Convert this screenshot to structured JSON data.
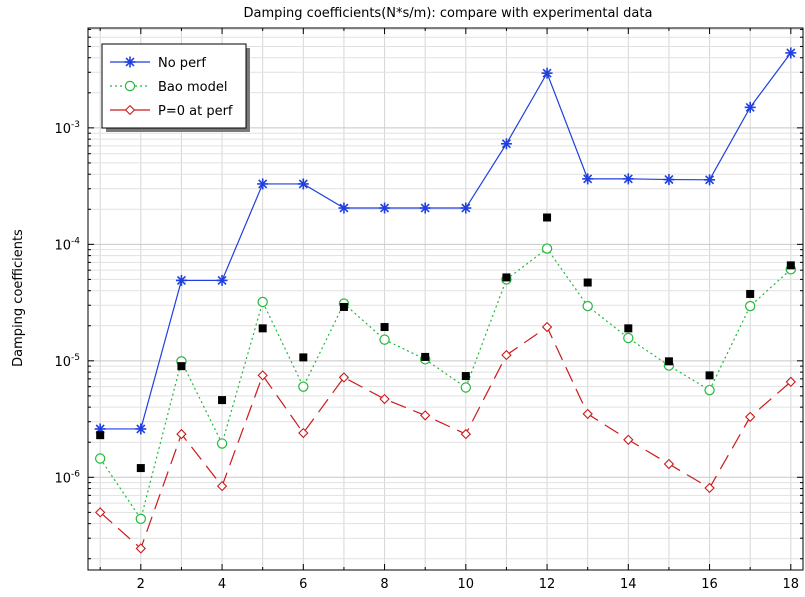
{
  "chart_data": {
    "type": "line",
    "title": "Damping coefficients(N*s/m): compare with experimental data",
    "xlabel": "",
    "ylabel": "Damping coefficients",
    "xlim": [
      0.7,
      18.3
    ],
    "ylim": [
      1.6e-07,
      0.0072
    ],
    "yscale": "log",
    "grid": true,
    "legend_position": "top-left",
    "x_ticks": [
      2,
      4,
      6,
      8,
      10,
      12,
      14,
      16,
      18
    ],
    "y_ticks": [
      {
        "value": 1e-06,
        "base": "10",
        "exp": "-6"
      },
      {
        "value": 1e-05,
        "base": "10",
        "exp": "-5"
      },
      {
        "value": 0.0001,
        "base": "10",
        "exp": "-4"
      },
      {
        "value": 0.001,
        "base": "10",
        "exp": "-3"
      }
    ],
    "x": [
      1,
      2,
      3,
      4,
      5,
      6,
      7,
      8,
      9,
      10,
      11,
      12,
      13,
      14,
      15,
      16,
      17,
      18
    ],
    "series": [
      {
        "name": "No perf",
        "color": "#1f3fe0",
        "marker": "star",
        "dash": "solid",
        "values": [
          2.6e-06,
          2.6e-06,
          4.9e-05,
          4.9e-05,
          0.00033,
          0.00033,
          0.000205,
          0.000205,
          0.000205,
          0.000205,
          0.00073,
          0.00295,
          0.000365,
          0.000365,
          0.00036,
          0.000358,
          0.0015,
          0.0044
        ]
      },
      {
        "name": "Bao model",
        "color": "#22b83a",
        "marker": "circle",
        "dash": "dotted",
        "values": [
          1.45e-06,
          4.4e-07,
          9.9e-06,
          1.95e-06,
          3.2e-05,
          6e-06,
          3.1e-05,
          1.52e-05,
          1.03e-05,
          5.9e-06,
          5e-05,
          9.2e-05,
          2.95e-05,
          1.57e-05,
          9.1e-06,
          5.6e-06,
          2.95e-05,
          6.1e-05
        ]
      },
      {
        "name": "P=0 at perf",
        "color": "#cc1a1a",
        "marker": "diamond",
        "dash": "longdash",
        "values": [
          5e-07,
          2.45e-07,
          2.35e-06,
          8.4e-07,
          7.5e-06,
          2.4e-06,
          7.2e-06,
          4.7e-06,
          3.4e-06,
          2.35e-06,
          1.12e-05,
          1.95e-05,
          3.5e-06,
          2.1e-06,
          1.3e-06,
          8.1e-07,
          3.3e-06,
          6.6e-06
        ]
      }
    ],
    "experimental": {
      "color": "#000000",
      "marker": "square",
      "values": [
        2.3e-06,
        1.2e-06,
        9e-06,
        4.6e-06,
        1.9e-05,
        1.07e-05,
        2.9e-05,
        1.95e-05,
        1.08e-05,
        7.4e-06,
        5.2e-05,
        0.00017,
        4.7e-05,
        1.9e-05,
        9.9e-06,
        7.5e-06,
        3.75e-05,
        6.6e-05
      ]
    }
  }
}
